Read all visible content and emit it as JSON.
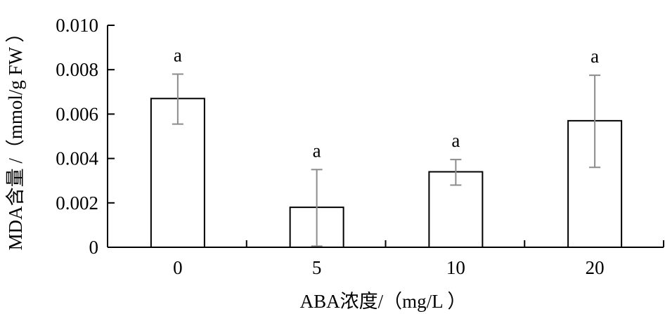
{
  "chart_data": {
    "type": "bar",
    "title": "",
    "xlabel": "ABA浓度/（mg/L ）",
    "ylabel": "MDA含量 /（mmol/g FW ）",
    "categories": [
      "0",
      "5",
      "10",
      "20"
    ],
    "values": [
      0.0067,
      0.0018,
      0.0034,
      0.0057
    ],
    "error_low": [
      0.00555,
      5e-05,
      0.0028,
      0.0036
    ],
    "error_high": [
      0.0078,
      0.0035,
      0.00395,
      0.00775
    ],
    "significance": [
      "a",
      "a",
      "a",
      "a"
    ],
    "ylim": [
      0,
      0.01
    ],
    "yticks": [
      "0",
      "0.002",
      "0.004",
      "0.006",
      "0.008",
      "0.010"
    ],
    "ytick_values": [
      0,
      0.002,
      0.004,
      0.006,
      0.008,
      0.01
    ],
    "grid": false,
    "legend": "none",
    "colors": {
      "bar_fill": "#ffffff",
      "bar_stroke": "#000000",
      "error_bar": "#8c8c8c",
      "axis": "#000000"
    }
  }
}
